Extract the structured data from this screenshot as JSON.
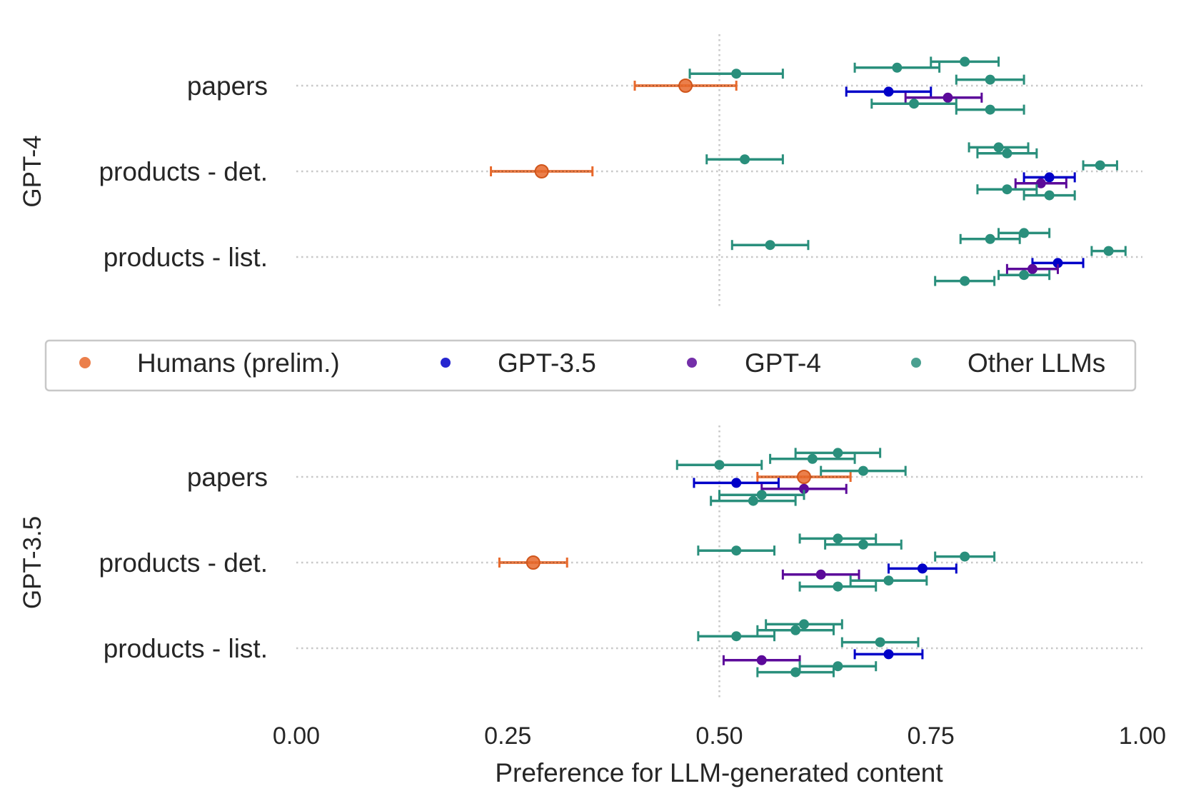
{
  "chart_data": {
    "type": "scatter",
    "xlabel": "Preference for LLM-generated content",
    "xlim": [
      0,
      1
    ],
    "xticks": [
      "0.00",
      "0.25",
      "0.50",
      "0.75",
      "1.00"
    ],
    "xtick_values": [
      0,
      0.25,
      0.5,
      0.75,
      1.0
    ],
    "reference_line_x": 0.5,
    "grid": "dotted horizontal lines at categories",
    "legend": {
      "placement": "center, between panels",
      "entries": [
        {
          "label": "Humans (prelim.)",
          "color": "#e8692c"
        },
        {
          "label": "GPT-3.5",
          "color": "#0000c8"
        },
        {
          "label": "GPT-4",
          "color": "#5c0a9a"
        },
        {
          "label": "Other LLMs",
          "color": "#2a8f7c"
        }
      ]
    },
    "panels": [
      {
        "label": "GPT-4",
        "categories": [
          "papers",
          "products - det.",
          "products - list."
        ],
        "series": [
          {
            "name": "Humans (prelim.)",
            "points": [
              {
                "cat": 0,
                "offset": 0,
                "x": 0.46,
                "lo": 0.4,
                "hi": 0.52
              },
              {
                "cat": 1,
                "offset": 0,
                "x": 0.29,
                "lo": 0.23,
                "hi": 0.35
              }
            ]
          },
          {
            "name": "GPT-3.5",
            "points": [
              {
                "cat": 0,
                "offset": -0.07,
                "x": 0.7,
                "lo": 0.65,
                "hi": 0.75
              },
              {
                "cat": 1,
                "offset": -0.07,
                "x": 0.89,
                "lo": 0.86,
                "hi": 0.92
              },
              {
                "cat": 2,
                "offset": -0.07,
                "x": 0.9,
                "lo": 0.87,
                "hi": 0.93
              }
            ]
          },
          {
            "name": "GPT-4",
            "points": [
              {
                "cat": 0,
                "offset": -0.14,
                "x": 0.77,
                "lo": 0.72,
                "hi": 0.81
              },
              {
                "cat": 1,
                "offset": -0.14,
                "x": 0.88,
                "lo": 0.85,
                "hi": 0.91
              },
              {
                "cat": 2,
                "offset": -0.14,
                "x": 0.87,
                "lo": 0.84,
                "hi": 0.9
              }
            ]
          },
          {
            "name": "Other LLMs",
            "points": [
              {
                "cat": 0,
                "offset": 0.28,
                "x": 0.79,
                "lo": 0.75,
                "hi": 0.83
              },
              {
                "cat": 0,
                "offset": 0.21,
                "x": 0.71,
                "lo": 0.66,
                "hi": 0.76
              },
              {
                "cat": 0,
                "offset": 0.14,
                "x": 0.52,
                "lo": 0.465,
                "hi": 0.575
              },
              {
                "cat": 0,
                "offset": 0.07,
                "x": 0.82,
                "lo": 0.78,
                "hi": 0.86
              },
              {
                "cat": 0,
                "offset": -0.21,
                "x": 0.73,
                "lo": 0.68,
                "hi": 0.78
              },
              {
                "cat": 0,
                "offset": -0.28,
                "x": 0.82,
                "lo": 0.78,
                "hi": 0.86
              },
              {
                "cat": 1,
                "offset": 0.28,
                "x": 0.83,
                "lo": 0.795,
                "hi": 0.865
              },
              {
                "cat": 1,
                "offset": 0.21,
                "x": 0.84,
                "lo": 0.805,
                "hi": 0.875
              },
              {
                "cat": 1,
                "offset": 0.14,
                "x": 0.53,
                "lo": 0.485,
                "hi": 0.575
              },
              {
                "cat": 1,
                "offset": 0.07,
                "x": 0.95,
                "lo": 0.93,
                "hi": 0.97
              },
              {
                "cat": 1,
                "offset": -0.21,
                "x": 0.84,
                "lo": 0.805,
                "hi": 0.875
              },
              {
                "cat": 1,
                "offset": -0.28,
                "x": 0.89,
                "lo": 0.86,
                "hi": 0.92
              },
              {
                "cat": 2,
                "offset": 0.28,
                "x": 0.86,
                "lo": 0.83,
                "hi": 0.89
              },
              {
                "cat": 2,
                "offset": 0.21,
                "x": 0.82,
                "lo": 0.785,
                "hi": 0.855
              },
              {
                "cat": 2,
                "offset": 0.14,
                "x": 0.56,
                "lo": 0.515,
                "hi": 0.605
              },
              {
                "cat": 2,
                "offset": 0.07,
                "x": 0.96,
                "lo": 0.94,
                "hi": 0.98
              },
              {
                "cat": 2,
                "offset": -0.21,
                "x": 0.86,
                "lo": 0.83,
                "hi": 0.89
              },
              {
                "cat": 2,
                "offset": -0.28,
                "x": 0.79,
                "lo": 0.755,
                "hi": 0.825
              }
            ]
          }
        ]
      },
      {
        "label": "GPT-3.5",
        "categories": [
          "papers",
          "products - det.",
          "products - list."
        ],
        "series": [
          {
            "name": "Humans (prelim.)",
            "points": [
              {
                "cat": 0,
                "offset": 0,
                "x": 0.6,
                "lo": 0.545,
                "hi": 0.655
              },
              {
                "cat": 1,
                "offset": 0,
                "x": 0.28,
                "lo": 0.24,
                "hi": 0.32
              }
            ]
          },
          {
            "name": "GPT-3.5",
            "points": [
              {
                "cat": 0,
                "offset": -0.07,
                "x": 0.52,
                "lo": 0.47,
                "hi": 0.57
              },
              {
                "cat": 1,
                "offset": -0.07,
                "x": 0.74,
                "lo": 0.7,
                "hi": 0.78
              },
              {
                "cat": 2,
                "offset": -0.07,
                "x": 0.7,
                "lo": 0.66,
                "hi": 0.74
              }
            ]
          },
          {
            "name": "GPT-4",
            "points": [
              {
                "cat": 0,
                "offset": -0.14,
                "x": 0.6,
                "lo": 0.55,
                "hi": 0.65
              },
              {
                "cat": 1,
                "offset": -0.14,
                "x": 0.62,
                "lo": 0.575,
                "hi": 0.665
              },
              {
                "cat": 2,
                "offset": -0.14,
                "x": 0.55,
                "lo": 0.505,
                "hi": 0.595
              }
            ]
          },
          {
            "name": "Other LLMs",
            "points": [
              {
                "cat": 0,
                "offset": 0.28,
                "x": 0.64,
                "lo": 0.59,
                "hi": 0.69
              },
              {
                "cat": 0,
                "offset": 0.21,
                "x": 0.61,
                "lo": 0.56,
                "hi": 0.66
              },
              {
                "cat": 0,
                "offset": 0.14,
                "x": 0.5,
                "lo": 0.45,
                "hi": 0.55
              },
              {
                "cat": 0,
                "offset": 0.07,
                "x": 0.67,
                "lo": 0.62,
                "hi": 0.72
              },
              {
                "cat": 0,
                "offset": -0.21,
                "x": 0.55,
                "lo": 0.5,
                "hi": 0.6
              },
              {
                "cat": 0,
                "offset": -0.28,
                "x": 0.54,
                "lo": 0.49,
                "hi": 0.59
              },
              {
                "cat": 1,
                "offset": 0.28,
                "x": 0.64,
                "lo": 0.595,
                "hi": 0.685
              },
              {
                "cat": 1,
                "offset": 0.21,
                "x": 0.67,
                "lo": 0.625,
                "hi": 0.715
              },
              {
                "cat": 1,
                "offset": 0.14,
                "x": 0.52,
                "lo": 0.475,
                "hi": 0.565
              },
              {
                "cat": 1,
                "offset": 0.07,
                "x": 0.79,
                "lo": 0.755,
                "hi": 0.825
              },
              {
                "cat": 1,
                "offset": -0.21,
                "x": 0.7,
                "lo": 0.655,
                "hi": 0.745
              },
              {
                "cat": 1,
                "offset": -0.28,
                "x": 0.64,
                "lo": 0.595,
                "hi": 0.685
              },
              {
                "cat": 2,
                "offset": 0.28,
                "x": 0.6,
                "lo": 0.555,
                "hi": 0.645
              },
              {
                "cat": 2,
                "offset": 0.21,
                "x": 0.59,
                "lo": 0.545,
                "hi": 0.635
              },
              {
                "cat": 2,
                "offset": 0.14,
                "x": 0.52,
                "lo": 0.475,
                "hi": 0.565
              },
              {
                "cat": 2,
                "offset": 0.07,
                "x": 0.69,
                "lo": 0.645,
                "hi": 0.735
              },
              {
                "cat": 2,
                "offset": -0.21,
                "x": 0.64,
                "lo": 0.595,
                "hi": 0.685
              },
              {
                "cat": 2,
                "offset": -0.28,
                "x": 0.59,
                "lo": 0.545,
                "hi": 0.635
              }
            ]
          }
        ]
      }
    ]
  }
}
